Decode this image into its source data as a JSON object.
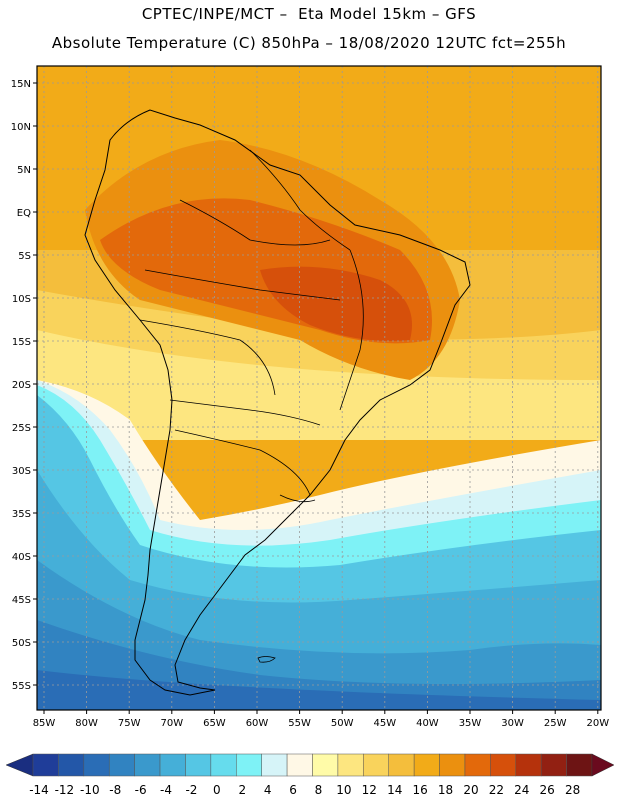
{
  "header": {
    "line1": "CPTEC/INPE/MCT –  Eta Model 15km – GFS",
    "line2": "Absolute Temperature (C) 850hPa – 18/08/2020 12UTC fct=255h"
  },
  "map": {
    "lat_labels": [
      "15N",
      "10N",
      "5N",
      "EQ",
      "5S",
      "10S",
      "15S",
      "20S",
      "25S",
      "30S",
      "35S",
      "40S",
      "45S",
      "50S",
      "55S"
    ],
    "lon_labels": [
      "85W",
      "80W",
      "75W",
      "70W",
      "65W",
      "60W",
      "55W",
      "50W",
      "45W",
      "40W",
      "35W",
      "30W",
      "25W",
      "20W"
    ]
  },
  "legend": {
    "labels": [
      "-14",
      "-12",
      "-10",
      "-8",
      "-6",
      "-4",
      "-2",
      "0",
      "2",
      "4",
      "6",
      "8",
      "10",
      "12",
      "14",
      "16",
      "18",
      "20",
      "22",
      "24",
      "26",
      "28"
    ],
    "colors": [
      "#1f3d99",
      "#2357a8",
      "#2a6db6",
      "#3183c1",
      "#3a99cc",
      "#45afd8",
      "#55c6e4",
      "#66dced",
      "#7ef2f6",
      "#d6f4f8",
      "#fff8e6",
      "#fffba8",
      "#fde680",
      "#f9d35c",
      "#f4be3c",
      "#f2ab18",
      "#eb900f",
      "#e3690b",
      "#d6500b",
      "#b5320c",
      "#922012",
      "#6d1414"
    ],
    "left_arrow_color": "#1a2e80",
    "right_arrow_color": "#6a0a1e"
  }
}
